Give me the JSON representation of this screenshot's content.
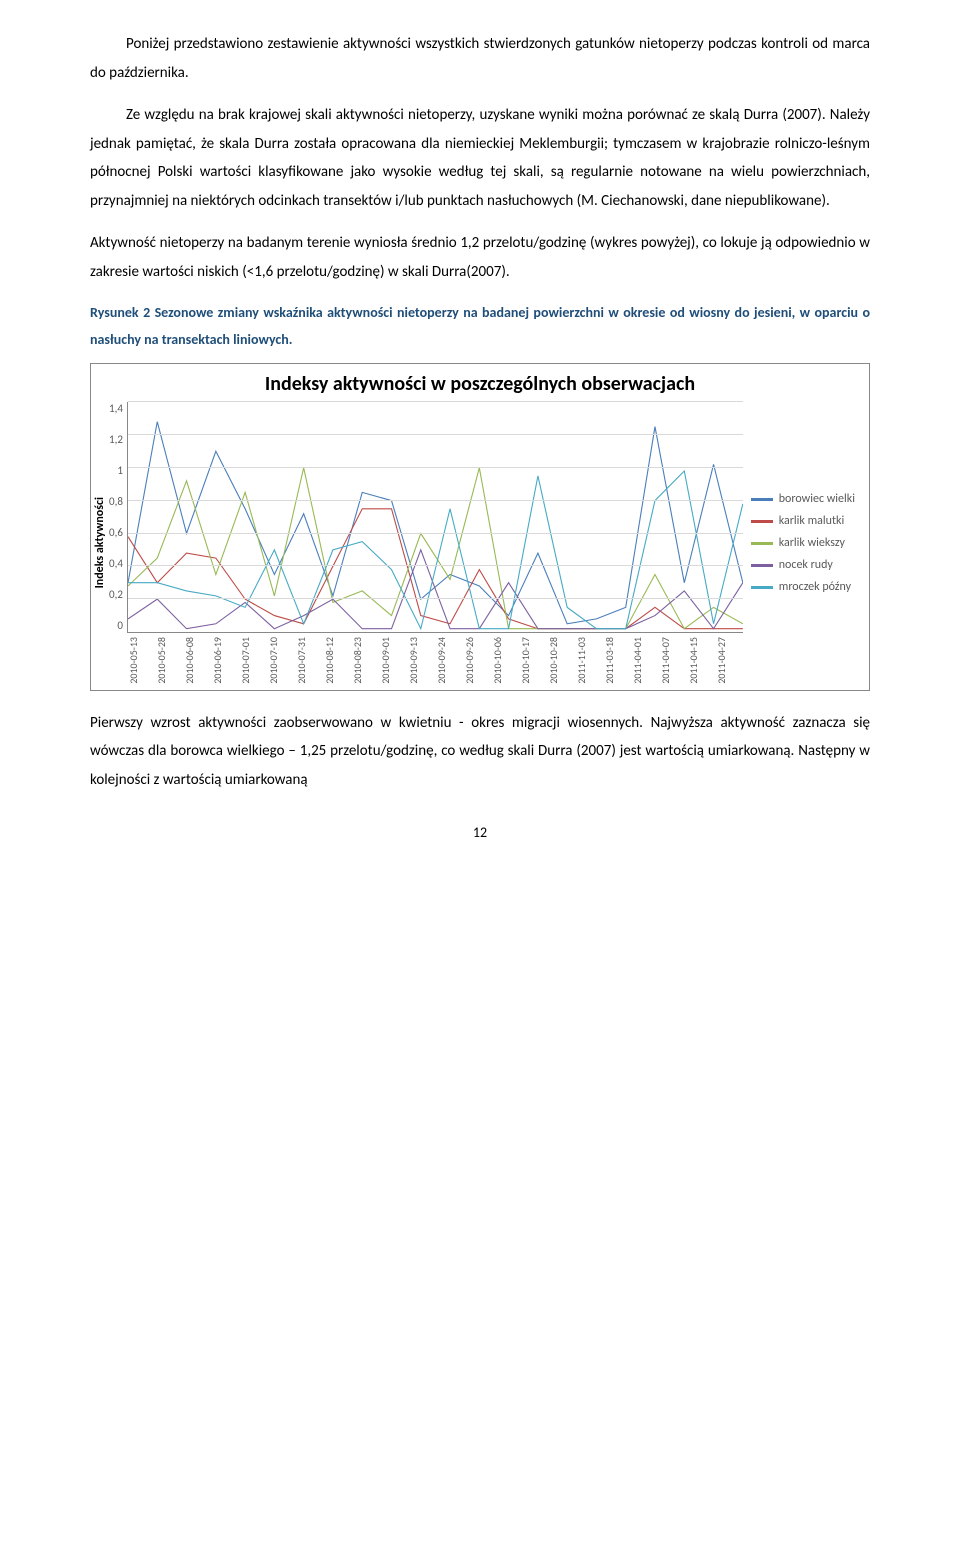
{
  "paragraphs": {
    "p1": "Poniżej przedstawiono zestawienie aktywności wszystkich stwierdzonych gatunków nietoperzy podczas kontroli od marca do października.",
    "p2": "Ze względu na brak krajowej skali aktywności nietoperzy, uzyskane wyniki można porównać ze skalą Durra (2007). Należy jednak pamiętać, że skala Durra została opracowana dla niemieckiej Meklemburgii; tymczasem w krajobrazie rolniczo-leśnym północnej Polski wartości klasyfikowane jako wysokie według tej skali, są regularnie notowane na wielu powierzchniach, przynajmniej na niektórych odcinkach transektów i/lub punktach nasłuchowych (M. Ciechanowski, dane niepublikowane).",
    "p3": "Aktywność nietoperzy na badanym terenie wyniosła średnio 1,2 przelotu/godzinę (wykres powyżej), co lokuje ją odpowiednio w zakresie wartości niskich (<1,6 przelotu/godzinę) w skali Durra(2007).",
    "p4": "Pierwszy wzrost aktywności zaobserwowano w kwietniu - okres migracji wiosennych. Najwyższa aktywność zaznacza się wówczas dla borowca wielkiego – 1,25 przelotu/godzinę, co według skali Durra (2007) jest wartością umiarkowaną. Następny w kolejności z wartością umiarkowaną"
  },
  "caption": "Rysunek 2 Sezonowe zmiany wskaźnika aktywności nietoperzy na badanej powierzchni w okresie od wiosny do jesieni, w oparciu o nasłuchy na transektach liniowych.",
  "chart": {
    "type": "line",
    "title": "Indeksy aktywności  w poszczególnych obserwacjach",
    "ylabel": "Indeks aktywności",
    "ylim": [
      0,
      1.4
    ],
    "ytick_step": 0.2,
    "yticks": [
      "1,4",
      "1,2",
      "1",
      "0,8",
      "0,6",
      "0,4",
      "0,2",
      "0"
    ],
    "grid_color": "#d9d9d9",
    "background_color": "#ffffff",
    "tick_fontsize": 11,
    "title_fontsize": 20,
    "categories": [
      "2010-05-13",
      "2010-05-28",
      "2010-06-08",
      "2010-06-19",
      "2010-07-01",
      "2010-07-10",
      "2010-07-31",
      "2010-08-12",
      "2010-08-23",
      "2010-09-01",
      "2010-09-13",
      "2010-09-24",
      "2010-09-26",
      "2010-10-06",
      "2010-10-17",
      "2010-10-28",
      "2011-11-03",
      "2011-03-18",
      "2011-04-01",
      "2011-04-07",
      "2011-04-15",
      "2011-04-27"
    ],
    "series": [
      {
        "name": "borowiec wielki",
        "color": "#4a7ebb",
        "values": [
          0.3,
          1.28,
          0.6,
          1.1,
          0.75,
          0.35,
          0.72,
          0.22,
          0.85,
          0.8,
          0.2,
          0.35,
          0.28,
          0.1,
          0.48,
          0.05,
          0.08,
          0.15,
          1.25,
          0.3,
          1.02,
          0.3
        ]
      },
      {
        "name": "karlik malutki",
        "color": "#be4b48",
        "values": [
          0.58,
          0.3,
          0.48,
          0.45,
          0.2,
          0.1,
          0.05,
          0.4,
          0.75,
          0.75,
          0.1,
          0.05,
          0.38,
          0.08,
          0.02,
          0.02,
          0.02,
          0.02,
          0.15,
          0.02,
          0.02,
          0.02
        ]
      },
      {
        "name": "karlik wiekszy",
        "color": "#98b954",
        "values": [
          0.28,
          0.45,
          0.92,
          0.35,
          0.85,
          0.22,
          1.0,
          0.18,
          0.25,
          0.1,
          0.6,
          0.32,
          1.0,
          0.02,
          0.02,
          0.02,
          0.02,
          0.02,
          0.35,
          0.02,
          0.15,
          0.05
        ]
      },
      {
        "name": "nocek rudy",
        "color": "#7d60a0",
        "values": [
          0.08,
          0.2,
          0.02,
          0.05,
          0.18,
          0.02,
          0.1,
          0.2,
          0.02,
          0.02,
          0.5,
          0.02,
          0.02,
          0.3,
          0.02,
          0.02,
          0.02,
          0.02,
          0.1,
          0.25,
          0.02,
          0.3
        ]
      },
      {
        "name": "mroczek późny",
        "color": "#46aac5",
        "values": [
          0.3,
          0.3,
          0.25,
          0.22,
          0.15,
          0.5,
          0.05,
          0.5,
          0.55,
          0.38,
          0.02,
          0.75,
          0.02,
          0.02,
          0.95,
          0.15,
          0.02,
          0.02,
          0.8,
          0.98,
          0.05,
          0.78
        ]
      }
    ]
  },
  "page_number": "12"
}
